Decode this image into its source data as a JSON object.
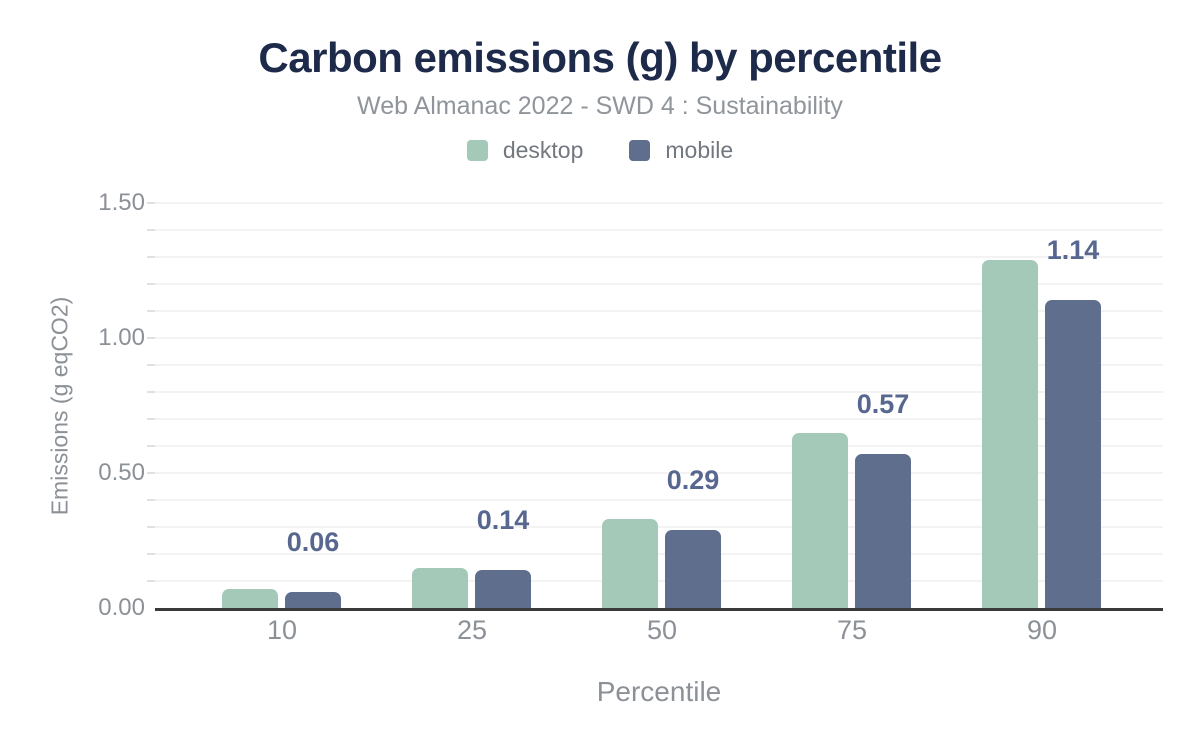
{
  "chart_data": {
    "type": "bar",
    "title": "Carbon emissions (g) by percentile",
    "subtitle": "Web Almanac 2022 - SWD 4 : Sustainability",
    "xlabel": "Percentile",
    "ylabel": "Emissions (g eqCO2)",
    "categories": [
      "10",
      "25",
      "50",
      "75",
      "90"
    ],
    "series": [
      {
        "name": "desktop",
        "color": "#a5c9b8",
        "values": [
          0.07,
          0.15,
          0.33,
          0.65,
          1.29
        ]
      },
      {
        "name": "mobile",
        "color": "#5f6e8c",
        "values": [
          0.06,
          0.14,
          0.29,
          0.57,
          1.14
        ]
      }
    ],
    "bar_labels": [
      "0.06",
      "0.14",
      "0.29",
      "0.57",
      "1.14"
    ],
    "bar_labels_on_series": "mobile",
    "ylim": [
      0,
      1.5
    ],
    "y_major_ticks": [
      {
        "value": 0.0,
        "label": "0.00"
      },
      {
        "value": 0.5,
        "label": "0.50"
      },
      {
        "value": 1.0,
        "label": "1.00"
      },
      {
        "value": 1.5,
        "label": "1.50"
      }
    ],
    "y_minor_step": 0.1,
    "grid": "horizontal minor gridlines on",
    "legend_position": "top center"
  },
  "colors": {
    "title_text": "#1d2a4a",
    "subtitle_text": "#8f959b",
    "legend_text": "#72787f",
    "axis_text": "#8c9197",
    "bar_value_label": "#57678f",
    "desktop_bar": "#a5c9b8",
    "mobile_bar": "#5f6e8c",
    "gridline": "#f3f3f3",
    "axis_line": "#3a3a3a",
    "background": "#ffffff"
  }
}
